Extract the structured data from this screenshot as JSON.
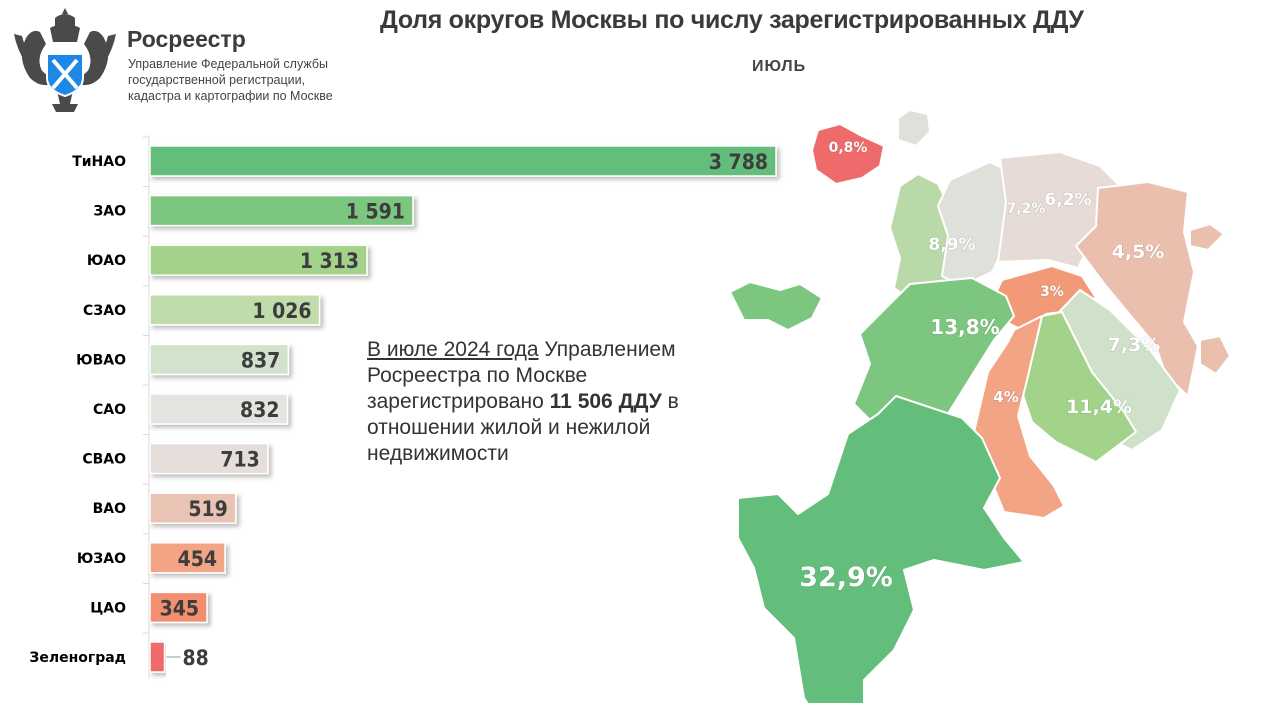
{
  "header": {
    "brand": "Росреестр",
    "subtitle_lines": [
      "Управление Федеральной службы",
      "государственной регистрации,",
      "кадастра и картографии по Москве"
    ],
    "title": "Доля округов Москвы по числу зарегистрированных ДДУ",
    "month": "ИЮЛЬ"
  },
  "note": {
    "underlined": "В июле 2024 года",
    "part1": " Управлением Росреестра по Москве зарегистрировано ",
    "bold": "11 506 ДДУ",
    "part2": " в отношении жилой и нежилой недвижимости"
  },
  "chart_data": {
    "type": "bar",
    "orientation": "horizontal",
    "categories": [
      "ТиНАО",
      "ЗАО",
      "ЮАО",
      "СЗАО",
      "ЮВАО",
      "САО",
      "СВАО",
      "ВАО",
      "ЮЗАО",
      "ЦАО",
      "Зеленоград"
    ],
    "values": [
      3788,
      1591,
      1313,
      1026,
      837,
      832,
      713,
      519,
      454,
      345,
      88
    ],
    "value_labels": [
      "3 788",
      "1 591",
      "1 313",
      "1 026",
      "837",
      "832",
      "713",
      "519",
      "454",
      "345",
      "88"
    ],
    "colors": [
      "#63be7b",
      "#7cc680",
      "#a3d38a",
      "#bfdcaa",
      "#d2e2cc",
      "#e3e5e0",
      "#e5dedb",
      "#e9c3b3",
      "#f2a484",
      "#f28f6f",
      "#ef6b6b"
    ],
    "grid": false
  },
  "map": {
    "regions": [
      {
        "name": "Зеленоград",
        "share": "0,8%",
        "color": "#ef6b6b"
      },
      {
        "name": "СЗАО",
        "share": "8,9%",
        "color": "#b9d9a8"
      },
      {
        "name": "САО",
        "share": "7,2%",
        "color": "#e0e0da"
      },
      {
        "name": "СВАО",
        "share": "6,2%",
        "color": "#e6dbd6"
      },
      {
        "name": "ВАО",
        "share": "4,5%",
        "color": "#eabfae"
      },
      {
        "name": "ЦАО",
        "share": "3%",
        "color": "#f29a78"
      },
      {
        "name": "ЗАО",
        "share": "13,8%",
        "color": "#7cc680"
      },
      {
        "name": "ЮВАО",
        "share": "7,3%",
        "color": "#d0e1c9"
      },
      {
        "name": "ЮАО",
        "share": "11,4%",
        "color": "#a3d38a"
      },
      {
        "name": "ЮЗАО",
        "share": "4%",
        "color": "#f2a484"
      },
      {
        "name": "ТиНАО",
        "share": "32,9%",
        "color": "#63be7b"
      }
    ]
  }
}
